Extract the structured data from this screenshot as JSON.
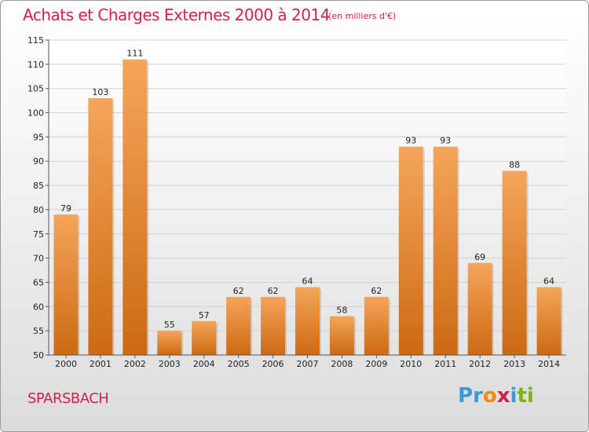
{
  "title": "Achats et Charges Externes 2000 à 2014",
  "subtitle": "(en milliers d'€)",
  "place": "SPARSBACH",
  "logo": {
    "letters": [
      "P",
      "r",
      "o",
      "x",
      "i",
      "t",
      "i"
    ],
    "colors": [
      "#3a9ad9",
      "#3a9ad9",
      "#f08a00",
      "#d0204f",
      "#3a9ad9",
      "#7ab800",
      "#7ab800"
    ]
  },
  "colors": {
    "bar_top": "#f5a55a",
    "bar_bottom": "#cc6a12",
    "accent": "#d0204f"
  },
  "chart_data": {
    "type": "bar",
    "categories": [
      "2000",
      "2001",
      "2002",
      "2003",
      "2004",
      "2005",
      "2006",
      "2007",
      "2008",
      "2009",
      "2010",
      "2011",
      "2012",
      "2013",
      "2014"
    ],
    "values": [
      79,
      103,
      111,
      55,
      57,
      62,
      62,
      64,
      58,
      62,
      93,
      93,
      69,
      88,
      64
    ],
    "ylim": [
      50,
      115
    ],
    "yticks": [
      50,
      55,
      60,
      65,
      70,
      75,
      80,
      85,
      90,
      95,
      100,
      105,
      110,
      115
    ],
    "grid": true
  }
}
